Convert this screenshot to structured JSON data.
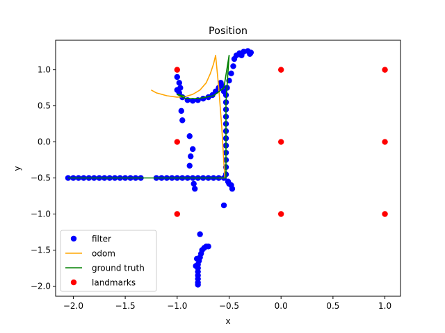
{
  "chart_data": {
    "type": "scatter",
    "title": "Position",
    "xlabel": "x",
    "ylabel": "y",
    "xlim": [
      -2.17,
      1.15
    ],
    "ylim": [
      -2.14,
      1.41
    ],
    "xticks": [
      -2.0,
      -1.5,
      -1.0,
      -0.5,
      0.0,
      0.5,
      1.0
    ],
    "xtick_labels": [
      "−2.0",
      "−1.5",
      "−1.0",
      "−0.5",
      "0.0",
      "0.5",
      "1.0"
    ],
    "yticks": [
      -2.0,
      -1.5,
      -1.0,
      -0.5,
      0.0,
      0.5,
      1.0
    ],
    "ytick_labels": [
      "−2.0",
      "−1.5",
      "−1.0",
      "−0.5",
      "0.0",
      "0.5",
      "1.0"
    ],
    "grid": false,
    "legend_position": "lower-left",
    "series": [
      {
        "name": "filter",
        "kind": "scatter",
        "color": "#0000ff",
        "points": [
          [
            -2.05,
            -0.5
          ],
          [
            -2.0,
            -0.5
          ],
          [
            -1.95,
            -0.5
          ],
          [
            -1.9,
            -0.5
          ],
          [
            -1.85,
            -0.5
          ],
          [
            -1.8,
            -0.5
          ],
          [
            -1.75,
            -0.5
          ],
          [
            -1.7,
            -0.5
          ],
          [
            -1.65,
            -0.5
          ],
          [
            -1.6,
            -0.5
          ],
          [
            -1.55,
            -0.5
          ],
          [
            -1.5,
            -0.5
          ],
          [
            -1.45,
            -0.5
          ],
          [
            -1.4,
            -0.5
          ],
          [
            -1.35,
            -0.5
          ],
          [
            -1.2,
            -0.5
          ],
          [
            -1.15,
            -0.5
          ],
          [
            -1.1,
            -0.5
          ],
          [
            -1.05,
            -0.5
          ],
          [
            -1.0,
            -0.5
          ],
          [
            -0.95,
            -0.5
          ],
          [
            -0.9,
            -0.5
          ],
          [
            -0.85,
            -0.5
          ],
          [
            -0.8,
            -0.5
          ],
          [
            -0.75,
            -0.5
          ],
          [
            -0.7,
            -0.5
          ],
          [
            -0.65,
            -0.5
          ],
          [
            -0.6,
            -0.5
          ],
          [
            -0.55,
            -0.5
          ],
          [
            -0.53,
            -0.45
          ],
          [
            -0.53,
            -0.35
          ],
          [
            -0.53,
            -0.25
          ],
          [
            -0.53,
            -0.15
          ],
          [
            -0.53,
            -0.05
          ],
          [
            -0.53,
            0.05
          ],
          [
            -0.53,
            0.15
          ],
          [
            -0.53,
            0.25
          ],
          [
            -0.53,
            0.35
          ],
          [
            -0.53,
            0.45
          ],
          [
            -0.53,
            0.55
          ],
          [
            -0.53,
            0.65
          ],
          [
            -0.51,
            -0.55
          ],
          [
            -0.5,
            -0.58
          ],
          [
            -0.48,
            -0.6
          ],
          [
            -0.47,
            -0.65
          ],
          [
            -0.55,
            -0.88
          ],
          [
            -0.52,
            0.75
          ],
          [
            -0.5,
            0.85
          ],
          [
            -0.48,
            0.95
          ],
          [
            -0.46,
            1.05
          ],
          [
            -0.45,
            1.15
          ],
          [
            -0.43,
            1.2
          ],
          [
            -0.4,
            1.23
          ],
          [
            -0.36,
            1.25
          ],
          [
            -0.32,
            1.26
          ],
          [
            -0.29,
            1.24
          ],
          [
            -0.3,
            1.22
          ],
          [
            -0.38,
            1.2
          ],
          [
            -0.55,
            0.7
          ],
          [
            -0.57,
            0.78
          ],
          [
            -0.58,
            0.82
          ],
          [
            -0.6,
            0.75
          ],
          [
            -0.63,
            0.7
          ],
          [
            -0.66,
            0.65
          ],
          [
            -0.7,
            0.62
          ],
          [
            -0.75,
            0.6
          ],
          [
            -0.8,
            0.58
          ],
          [
            -0.85,
            0.57
          ],
          [
            -0.9,
            0.58
          ],
          [
            -0.95,
            0.62
          ],
          [
            -0.98,
            0.68
          ],
          [
            -1.0,
            0.72
          ],
          [
            -0.97,
            0.75
          ],
          [
            -1.0,
            0.9
          ],
          [
            -0.98,
            0.82
          ],
          [
            -0.96,
            0.43
          ],
          [
            -0.95,
            0.3
          ],
          [
            -0.88,
            0.08
          ],
          [
            -0.85,
            -0.1
          ],
          [
            -0.87,
            -0.2
          ],
          [
            -0.88,
            -0.33
          ],
          [
            -0.84,
            -0.58
          ],
          [
            -0.83,
            -0.65
          ],
          [
            -0.78,
            -1.28
          ],
          [
            -0.72,
            -1.45
          ],
          [
            -0.7,
            -1.45
          ],
          [
            -0.74,
            -1.47
          ],
          [
            -0.76,
            -1.5
          ],
          [
            -0.77,
            -1.55
          ],
          [
            -0.78,
            -1.6
          ],
          [
            -0.79,
            -1.65
          ],
          [
            -0.8,
            -1.7
          ],
          [
            -0.8,
            -1.75
          ],
          [
            -0.8,
            -1.8
          ],
          [
            -0.8,
            -1.85
          ],
          [
            -0.8,
            -1.9
          ],
          [
            -0.8,
            -1.95
          ],
          [
            -0.8,
            -1.98
          ],
          [
            -0.81,
            -1.62
          ],
          [
            -0.82,
            -1.72
          ]
        ]
      },
      {
        "name": "odom",
        "kind": "line",
        "color": "#ffa500",
        "points": [
          [
            -1.25,
            0.72
          ],
          [
            -1.2,
            0.68
          ],
          [
            -1.1,
            0.64
          ],
          [
            -1.0,
            0.62
          ],
          [
            -0.92,
            0.63
          ],
          [
            -0.85,
            0.66
          ],
          [
            -0.78,
            0.72
          ],
          [
            -0.72,
            0.82
          ],
          [
            -0.68,
            0.95
          ],
          [
            -0.65,
            1.08
          ],
          [
            -0.63,
            1.2
          ],
          [
            -0.6,
            0.75
          ],
          [
            -0.57,
            0.2
          ],
          [
            -0.55,
            -0.3
          ],
          [
            -0.54,
            -0.5
          ],
          [
            -0.55,
            -0.5
          ],
          [
            -0.6,
            -0.5
          ]
        ]
      },
      {
        "name": "ground truth",
        "kind": "line",
        "color": "#008000",
        "points": [
          [
            -2.05,
            -0.5
          ],
          [
            -0.53,
            -0.5
          ],
          [
            -0.53,
            0.55
          ],
          [
            -0.5,
            1.2
          ],
          [
            -0.55,
            0.75
          ],
          [
            -0.65,
            0.64
          ],
          [
            -0.8,
            0.6
          ],
          [
            -0.92,
            0.6
          ],
          [
            -1.0,
            0.66
          ],
          [
            -0.92,
            0.63
          ]
        ]
      },
      {
        "name": "landmarks",
        "kind": "scatter",
        "color": "#ff0000",
        "points": [
          [
            -1,
            1
          ],
          [
            0,
            1
          ],
          [
            1,
            1
          ],
          [
            -1,
            0
          ],
          [
            0,
            0
          ],
          [
            1,
            0
          ],
          [
            -1,
            -1
          ],
          [
            0,
            -1
          ],
          [
            1,
            -1
          ]
        ]
      }
    ]
  }
}
